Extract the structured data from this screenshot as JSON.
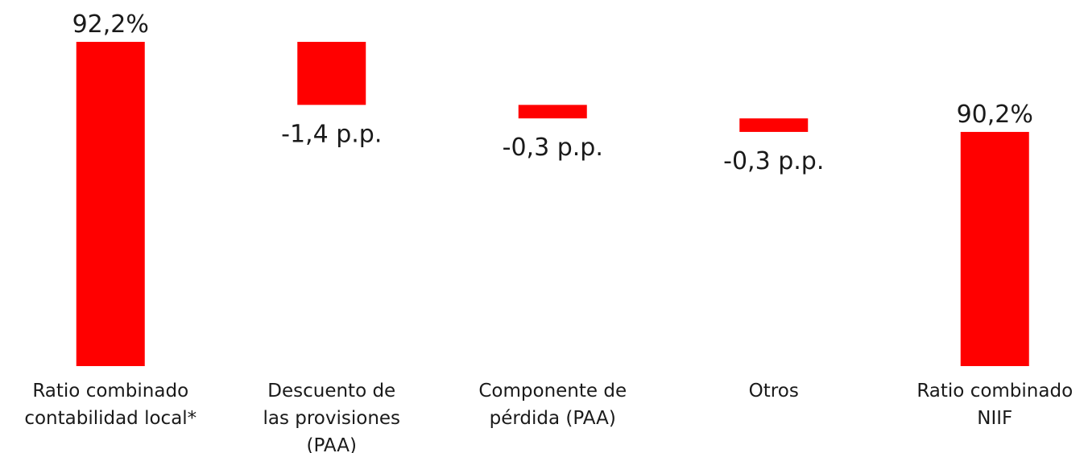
{
  "chart_data": {
    "type": "waterfall",
    "categories": [
      [
        "Ratio combinado",
        "contabilidad local*"
      ],
      [
        "Descuento de",
        "las provisiones",
        "(PAA)"
      ],
      [
        "Componente de",
        "pérdida (PAA)"
      ],
      [
        "Otros"
      ],
      [
        "Ratio combinado",
        "NIIF"
      ]
    ],
    "values": [
      92.2,
      -1.4,
      -0.3,
      -0.3,
      90.2
    ],
    "value_labels": [
      "92,2%",
      "-1,4 p.p.",
      "-0,3 p.p.",
      "-0,3 p.p.",
      "90,2%"
    ],
    "measures": [
      "total",
      "relative",
      "relative",
      "relative",
      "total"
    ],
    "color": "#ff0000",
    "ylim": [
      85,
      92.2
    ]
  }
}
